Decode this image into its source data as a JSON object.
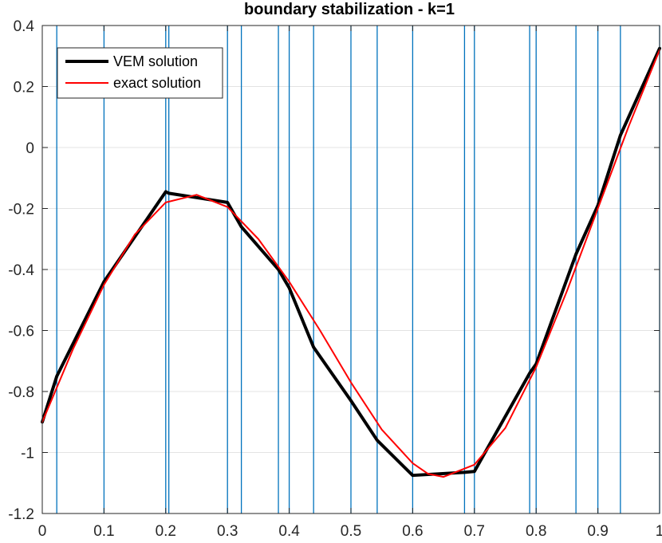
{
  "chart_data": {
    "type": "line",
    "title": "boundary stabilization - k=1",
    "xlabel": "",
    "ylabel": "",
    "xlim": [
      0,
      1
    ],
    "ylim": [
      -1.2,
      0.4
    ],
    "x_ticks": [
      0,
      0.1,
      0.2,
      0.3,
      0.4,
      0.5,
      0.6,
      0.7,
      0.8,
      0.9,
      1
    ],
    "x_tick_labels": [
      "0",
      "0.1",
      "0.2",
      "0.3",
      "0.4",
      "0.5",
      "0.6",
      "0.7",
      "0.8",
      "0.9",
      "1"
    ],
    "y_ticks": [
      -1.2,
      -1,
      -0.8,
      -0.6,
      -0.4,
      -0.2,
      0,
      0.2,
      0.4
    ],
    "y_tick_labels": [
      "-1.2",
      "-1",
      "-0.8",
      "-0.6",
      "-0.4",
      "-0.2",
      "0",
      "0.2",
      "0.4"
    ],
    "grid": true,
    "legend_position": "top-left",
    "mesh_lines": {
      "color": "#0072BD",
      "x": [
        0.0235,
        0.1,
        0.2,
        0.205,
        0.3,
        0.3225,
        0.3825,
        0.4,
        0.4395,
        0.5,
        0.5425,
        0.6,
        0.684,
        0.7,
        0.7895,
        0.8,
        0.8645,
        0.9,
        0.9365,
        1
      ]
    },
    "series": [
      {
        "name": "VEM solution",
        "color": "#000000",
        "line_width": 4,
        "x": [
          0,
          0.0235,
          0.1,
          0.2,
          0.205,
          0.3,
          0.3225,
          0.3825,
          0.4,
          0.4395,
          0.5,
          0.5425,
          0.6,
          0.684,
          0.7,
          0.7895,
          0.8,
          0.8645,
          0.9,
          0.9365,
          1
        ],
        "y": [
          -0.9,
          -0.75,
          -0.44,
          -0.145,
          -0.15,
          -0.18,
          -0.26,
          -0.4,
          -0.46,
          -0.655,
          -0.83,
          -0.96,
          -1.075,
          -1.065,
          -1.062,
          -0.74,
          -0.71,
          -0.35,
          -0.19,
          0.04,
          0.325
        ]
      },
      {
        "name": "exact solution",
        "color": "#FF0000",
        "line_width": 2,
        "x": [
          0,
          0.05,
          0.1,
          0.15,
          0.2,
          0.25,
          0.3,
          0.35,
          0.4,
          0.45,
          0.5,
          0.55,
          0.6,
          0.625,
          0.65,
          0.7,
          0.75,
          0.8,
          0.85,
          0.9,
          0.95,
          1
        ],
        "y": [
          -0.9,
          -0.66,
          -0.45,
          -0.285,
          -0.18,
          -0.155,
          -0.195,
          -0.3,
          -0.44,
          -0.6,
          -0.77,
          -0.925,
          -1.035,
          -1.07,
          -1.08,
          -1.04,
          -0.92,
          -0.72,
          -0.47,
          -0.2,
          0.07,
          0.32
        ]
      }
    ]
  }
}
